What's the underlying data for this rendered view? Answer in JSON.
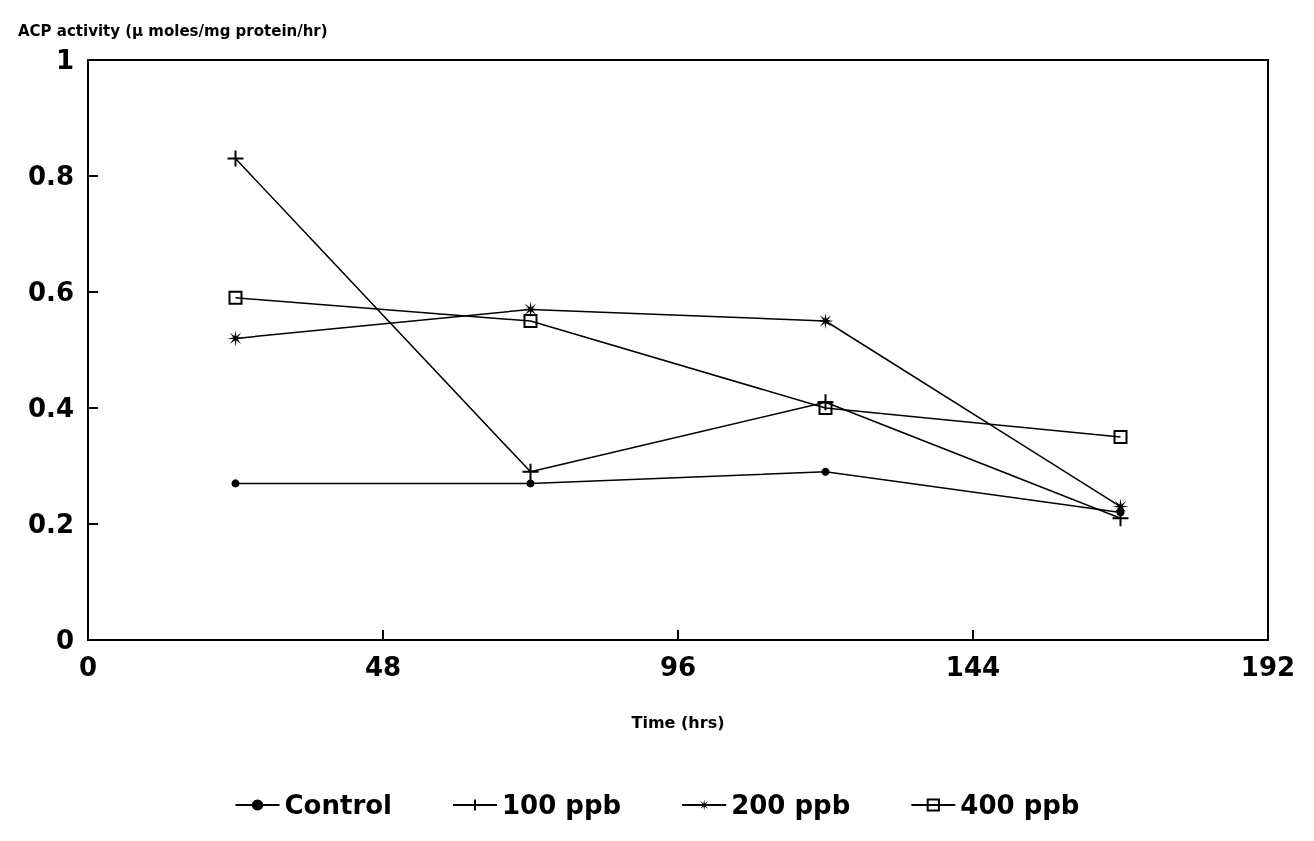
{
  "chart_data": {
    "type": "line",
    "xlabel": "Time (hrs)",
    "ylabel": "ACP activity (μ moles/mg protein/hr)",
    "x": [
      24,
      72,
      120,
      168
    ],
    "series": [
      {
        "name": "Control",
        "color": "#000000",
        "marker": "circle",
        "values": [
          0.27,
          0.27,
          0.29,
          0.22
        ]
      },
      {
        "name": "100 ppb",
        "color": "#000000",
        "marker": "cross",
        "values": [
          0.83,
          0.29,
          0.41,
          0.21
        ]
      },
      {
        "name": "200 ppb",
        "color": "#000000",
        "marker": "star",
        "values": [
          0.52,
          0.57,
          0.55,
          0.23
        ]
      },
      {
        "name": "400 ppb",
        "color": "#000000",
        "marker": "square",
        "values": [
          0.59,
          0.55,
          0.4,
          0.35
        ]
      }
    ],
    "xlim": [
      0,
      192
    ],
    "xticks": [
      0,
      48,
      96,
      144,
      192
    ],
    "ylim": [
      0,
      1
    ],
    "yticks": [
      0,
      0.2,
      0.4,
      0.6,
      0.8,
      1
    ],
    "grid": false,
    "legend": "bottom",
    "line_style": "solid"
  }
}
